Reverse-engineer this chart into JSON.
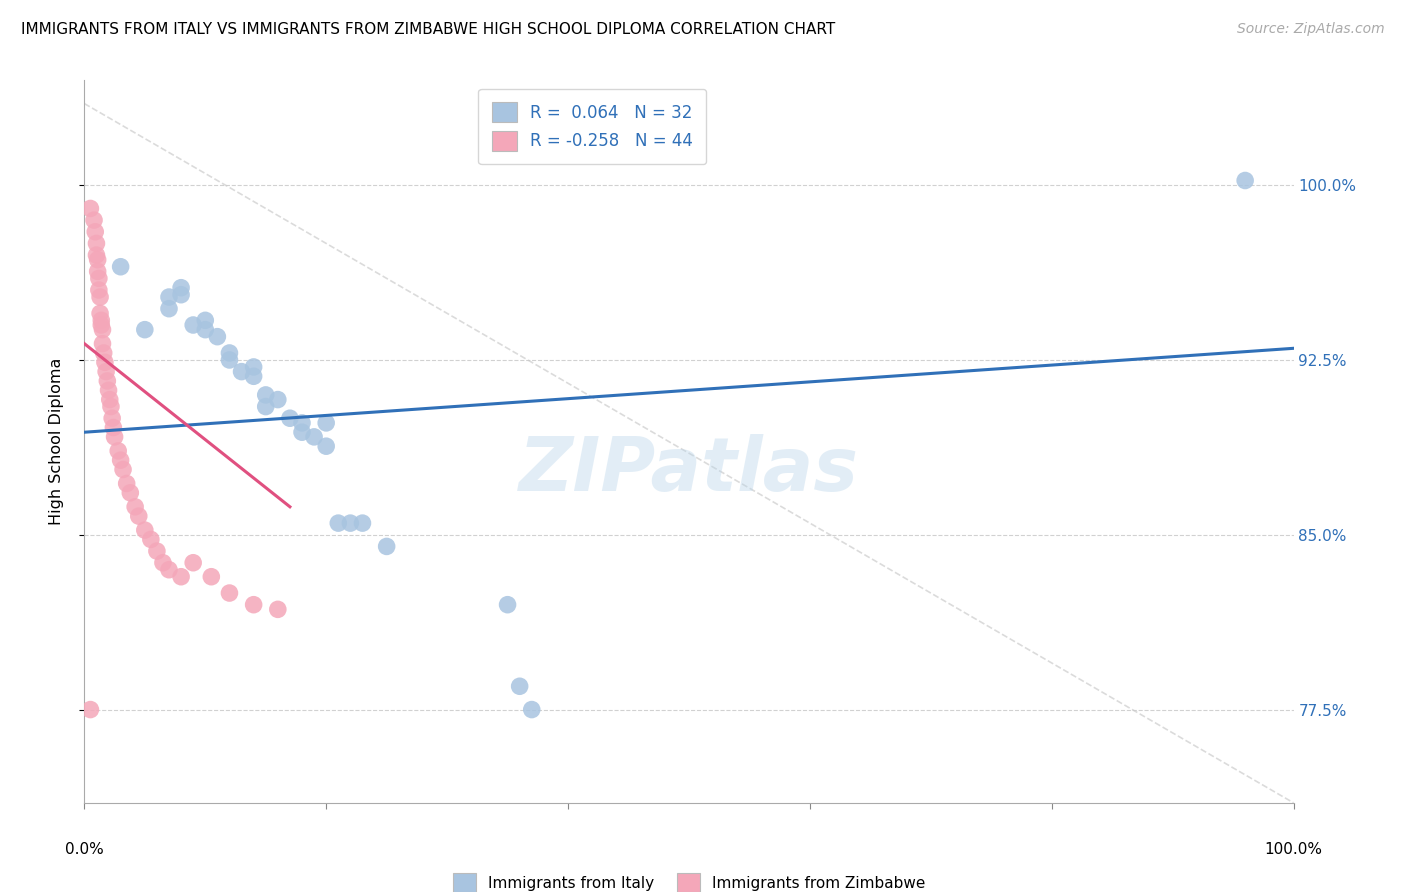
{
  "title": "IMMIGRANTS FROM ITALY VS IMMIGRANTS FROM ZIMBABWE HIGH SCHOOL DIPLOMA CORRELATION CHART",
  "source": "Source: ZipAtlas.com",
  "ylabel": "High School Diploma",
  "ytick_labels": [
    "77.5%",
    "85.0%",
    "92.5%",
    "100.0%"
  ],
  "ytick_values": [
    0.775,
    0.85,
    0.925,
    1.0
  ],
  "xlim": [
    0.0,
    1.0
  ],
  "ylim": [
    0.735,
    1.045
  ],
  "legend_italy_R": "0.064",
  "legend_italy_N": "32",
  "legend_zimbabwe_R": "-0.258",
  "legend_zimbabwe_N": "44",
  "italy_color": "#a8c4e0",
  "zimbabwe_color": "#f4a7b9",
  "italy_line_color": "#3070b8",
  "zimbabwe_line_color": "#e05080",
  "dashed_line_color": "#cccccc",
  "watermark": "ZIPatlas",
  "italy_x": [
    0.03,
    0.05,
    0.07,
    0.07,
    0.08,
    0.08,
    0.09,
    0.1,
    0.1,
    0.11,
    0.12,
    0.12,
    0.13,
    0.14,
    0.14,
    0.15,
    0.15,
    0.16,
    0.17,
    0.18,
    0.18,
    0.19,
    0.2,
    0.2,
    0.21,
    0.22,
    0.23,
    0.25,
    0.35,
    0.36,
    0.37,
    0.96
  ],
  "italy_y": [
    0.965,
    0.938,
    0.952,
    0.947,
    0.956,
    0.953,
    0.94,
    0.942,
    0.938,
    0.935,
    0.928,
    0.925,
    0.92,
    0.922,
    0.918,
    0.91,
    0.905,
    0.908,
    0.9,
    0.898,
    0.894,
    0.892,
    0.898,
    0.888,
    0.855,
    0.855,
    0.855,
    0.845,
    0.82,
    0.785,
    0.775,
    1.002
  ],
  "zimbabwe_x": [
    0.005,
    0.008,
    0.009,
    0.01,
    0.01,
    0.011,
    0.011,
    0.012,
    0.012,
    0.013,
    0.013,
    0.014,
    0.014,
    0.015,
    0.015,
    0.016,
    0.017,
    0.018,
    0.019,
    0.02,
    0.021,
    0.022,
    0.023,
    0.024,
    0.025,
    0.028,
    0.03,
    0.032,
    0.035,
    0.038,
    0.042,
    0.045,
    0.05,
    0.055,
    0.06,
    0.065,
    0.07,
    0.08,
    0.09,
    0.105,
    0.12,
    0.14,
    0.16,
    0.005
  ],
  "zimbabwe_y": [
    0.99,
    0.985,
    0.98,
    0.975,
    0.97,
    0.968,
    0.963,
    0.96,
    0.955,
    0.952,
    0.945,
    0.942,
    0.94,
    0.938,
    0.932,
    0.928,
    0.924,
    0.92,
    0.916,
    0.912,
    0.908,
    0.905,
    0.9,
    0.896,
    0.892,
    0.886,
    0.882,
    0.878,
    0.872,
    0.868,
    0.862,
    0.858,
    0.852,
    0.848,
    0.843,
    0.838,
    0.835,
    0.832,
    0.838,
    0.832,
    0.825,
    0.82,
    0.818,
    0.775
  ],
  "italy_line_x": [
    0.0,
    1.0
  ],
  "italy_line_y": [
    0.894,
    0.93
  ],
  "zimbabwe_line_x": [
    0.0,
    0.17
  ],
  "zimbabwe_line_y": [
    0.932,
    0.862
  ],
  "diag_line_x": [
    0.0,
    1.0
  ],
  "diag_line_y": [
    1.035,
    0.735
  ]
}
